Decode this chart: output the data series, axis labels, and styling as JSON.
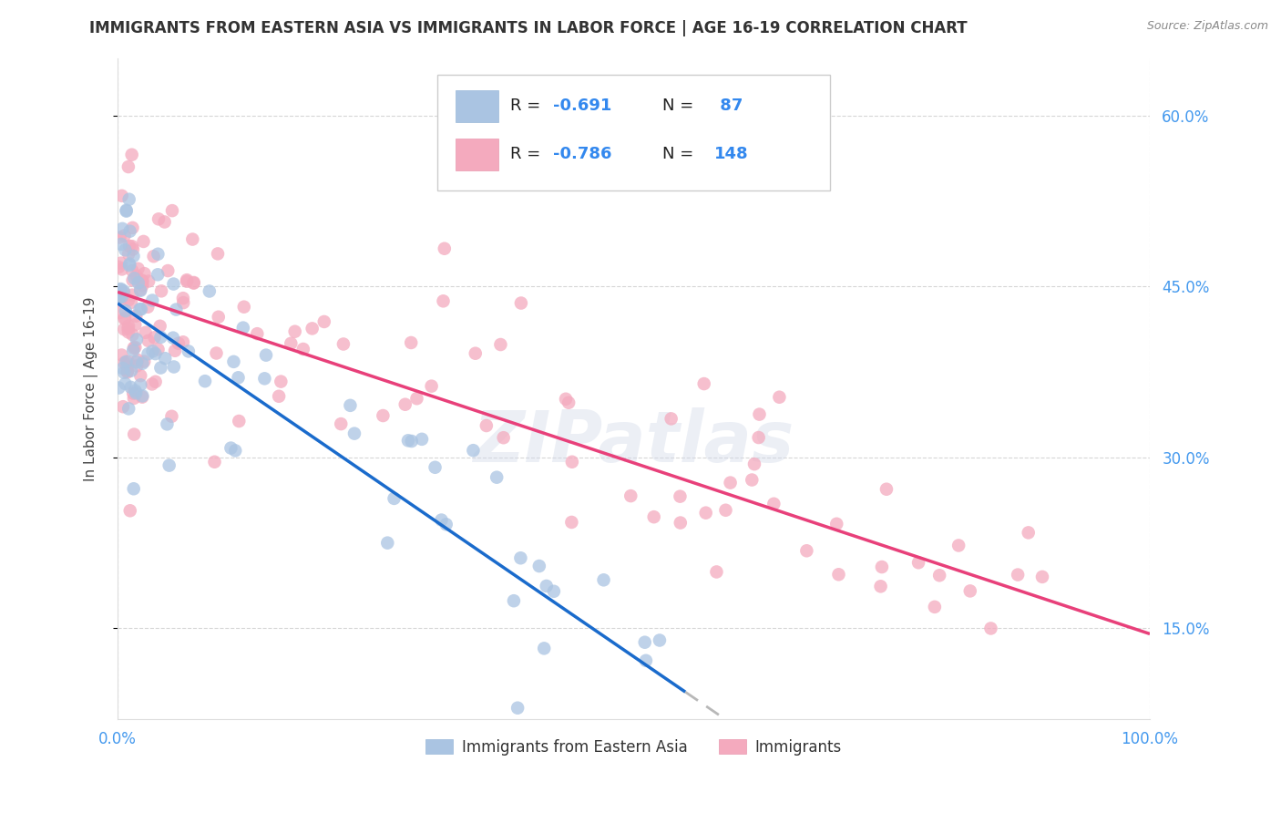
{
  "title": "IMMIGRANTS FROM EASTERN ASIA VS IMMIGRANTS IN LABOR FORCE | AGE 16-19 CORRELATION CHART",
  "source": "Source: ZipAtlas.com",
  "ylabel": "In Labor Force | Age 16-19",
  "legend_label_blue": "Immigrants from Eastern Asia",
  "legend_label_pink": "Immigrants",
  "R_blue": -0.691,
  "N_blue": 87,
  "R_pink": -0.786,
  "N_pink": 148,
  "blue_color": "#aac4e2",
  "pink_color": "#f4aabe",
  "blue_line_color": "#1a6bcc",
  "pink_line_color": "#e8407a",
  "dashed_line_color": "#b8b8b8",
  "watermark": "ZIPatlas",
  "background_color": "#ffffff",
  "grid_color": "#cccccc",
  "y_min": 0.07,
  "y_max": 0.65,
  "x_min": 0.0,
  "x_max": 1.0,
  "blue_line_intercept": 0.435,
  "blue_line_slope": -0.62,
  "blue_line_solid_end": 0.55,
  "pink_line_intercept": 0.445,
  "pink_line_slope": -0.3,
  "y_ticks": [
    0.15,
    0.3,
    0.45,
    0.6
  ],
  "y_tick_labels": [
    "15.0%",
    "30.0%",
    "45.0%",
    "60.0%"
  ]
}
